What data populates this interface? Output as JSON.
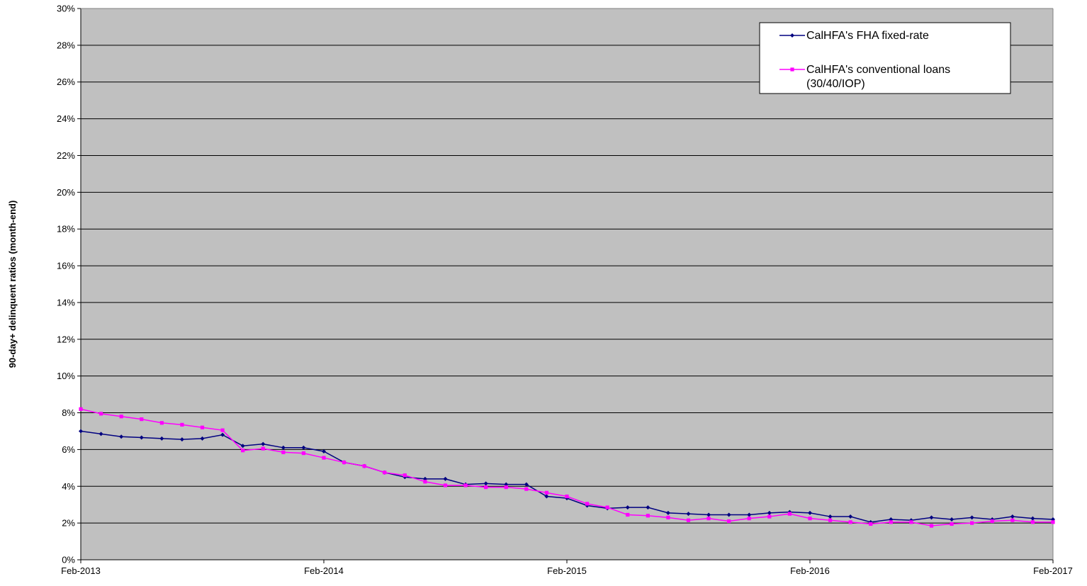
{
  "chart_data": {
    "type": "line",
    "title": "",
    "xlabel": "",
    "ylabel": "90-day+ delinquent ratios (month-end)",
    "ylim": [
      0,
      30
    ],
    "y_ticks": [
      "0%",
      "2%",
      "4%",
      "6%",
      "8%",
      "10%",
      "12%",
      "14%",
      "16%",
      "18%",
      "20%",
      "22%",
      "24%",
      "26%",
      "28%",
      "30%"
    ],
    "x_tick_labels": [
      "Feb-2013",
      "Feb-2014",
      "Feb-2015",
      "Feb-2016",
      "Feb-2017"
    ],
    "x": [
      "Feb-2013",
      "Mar-2013",
      "Apr-2013",
      "May-2013",
      "Jun-2013",
      "Jul-2013",
      "Aug-2013",
      "Sep-2013",
      "Oct-2013",
      "Nov-2013",
      "Dec-2013",
      "Jan-2014",
      "Feb-2014",
      "Mar-2014",
      "Apr-2014",
      "May-2014",
      "Jun-2014",
      "Jul-2014",
      "Aug-2014",
      "Sep-2014",
      "Oct-2014",
      "Nov-2014",
      "Dec-2014",
      "Jan-2015",
      "Feb-2015",
      "Mar-2015",
      "Apr-2015",
      "May-2015",
      "Jun-2015",
      "Jul-2015",
      "Aug-2015",
      "Sep-2015",
      "Oct-2015",
      "Nov-2015",
      "Dec-2015",
      "Jan-2016",
      "Feb-2016",
      "Mar-2016",
      "Apr-2016",
      "May-2016",
      "Jun-2016",
      "Jul-2016",
      "Aug-2016",
      "Sep-2016",
      "Oct-2016",
      "Nov-2016",
      "Dec-2016",
      "Jan-2017",
      "Feb-2017"
    ],
    "grid": true,
    "background": "#c0c0c0",
    "legend_position": "top-right",
    "series": [
      {
        "name": "CalHFA's FHA fixed-rate",
        "color": "#000080",
        "marker": "diamond",
        "values": [
          7.0,
          6.85,
          6.7,
          6.65,
          6.6,
          6.55,
          6.6,
          6.8,
          6.2,
          6.3,
          6.1,
          6.1,
          5.9,
          5.3,
          5.1,
          4.75,
          4.5,
          4.4,
          4.4,
          4.1,
          4.15,
          4.1,
          4.1,
          3.45,
          3.35,
          2.95,
          2.8,
          2.85,
          2.85,
          2.55,
          2.5,
          2.45,
          2.45,
          2.45,
          2.55,
          2.6,
          2.55,
          2.35,
          2.35,
          2.05,
          2.2,
          2.15,
          2.3,
          2.2,
          2.3,
          2.2,
          2.35,
          2.25,
          2.2
        ]
      },
      {
        "name": "CalHFA's conventional loans (30/40/IOP)",
        "name_lines": [
          "CalHFA's conventional loans",
          "(30/40/IOP)"
        ],
        "color": "#ff00ff",
        "marker": "square",
        "values": [
          8.2,
          7.95,
          7.8,
          7.65,
          7.45,
          7.35,
          7.2,
          7.05,
          5.95,
          6.05,
          5.85,
          5.8,
          5.55,
          5.3,
          5.1,
          4.75,
          4.6,
          4.25,
          4.05,
          4.05,
          3.95,
          3.95,
          3.85,
          3.65,
          3.45,
          3.05,
          2.85,
          2.45,
          2.4,
          2.3,
          2.15,
          2.25,
          2.1,
          2.25,
          2.35,
          2.5,
          2.25,
          2.15,
          2.05,
          1.95,
          2.05,
          2.05,
          1.85,
          1.95,
          2.0,
          2.1,
          2.15,
          2.05,
          2.05
        ]
      }
    ]
  }
}
